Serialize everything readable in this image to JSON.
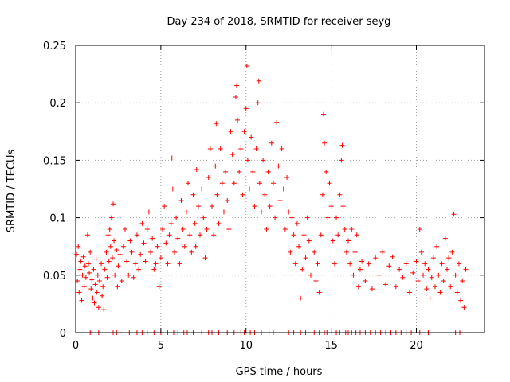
{
  "chart_data": {
    "type": "scatter",
    "title": "Day 234 of 2018, SRMTID for receiver seyg",
    "xlabel": "GPS time / hours",
    "ylabel": "SRMTID / TECUs",
    "xlim": [
      0,
      24
    ],
    "ylim": [
      0,
      0.25
    ],
    "x_ticks": [
      0,
      5,
      10,
      15,
      20
    ],
    "x_tick_labels": [
      "0",
      "5",
      "10",
      "15",
      "20"
    ],
    "y_ticks": [
      0,
      0.05,
      0.1,
      0.15,
      0.2,
      0.25
    ],
    "y_tick_labels": [
      "0",
      "0.05",
      "0.1",
      "0.15",
      "0.2",
      "0.25"
    ],
    "grid": true,
    "marker": "+",
    "series": [
      {
        "name": "SRMTID",
        "color": "#ff0000",
        "points": [
          [
            0.05,
            0.068
          ],
          [
            0.1,
            0.045
          ],
          [
            0.15,
            0.075
          ],
          [
            0.2,
            0.035
          ],
          [
            0.25,
            0.055
          ],
          [
            0.3,
            0.062
          ],
          [
            0.35,
            0.028
          ],
          [
            0.4,
            0.05
          ],
          [
            0.45,
            0.066
          ],
          [
            0.5,
            0.04
          ],
          [
            0.55,
            0.058
          ],
          [
            0.6,
            0.048
          ],
          [
            0.7,
            0.085
          ],
          [
            0.75,
            0.06
          ],
          [
            0.8,
            0.052
          ],
          [
            0.85,
            0.07
          ],
          [
            0.9,
            0.038
          ],
          [
            0.95,
            0.046
          ],
          [
            1.0,
            0.03
          ],
          [
            1.05,
            0.055
          ],
          [
            1.1,
            0.026
          ],
          [
            1.15,
            0.042
          ],
          [
            1.2,
            0.064
          ],
          [
            1.25,
            0.035
          ],
          [
            1.3,
            0.05
          ],
          [
            1.35,
            0.022
          ],
          [
            1.4,
            0.045
          ],
          [
            1.5,
            0.06
          ],
          [
            1.55,
            0.032
          ],
          [
            1.6,
            0.04
          ],
          [
            1.65,
            0.02
          ],
          [
            1.7,
            0.055
          ],
          [
            1.8,
            0.07
          ],
          [
            1.85,
            0.048
          ],
          [
            1.9,
            0.085
          ],
          [
            1.95,
            0.062
          ],
          [
            2.0,
            0.09
          ],
          [
            2.05,
            0.075
          ],
          [
            2.1,
            0.1
          ],
          [
            2.15,
            0.065
          ],
          [
            2.2,
            0.112
          ],
          [
            2.25,
            0.08
          ],
          [
            2.3,
            0.05
          ],
          [
            2.4,
            0.072
          ],
          [
            2.45,
            0.04
          ],
          [
            2.5,
            0.058
          ],
          [
            2.6,
            0.068
          ],
          [
            2.7,
            0.045
          ],
          [
            2.8,
            0.075
          ],
          [
            2.9,
            0.09
          ],
          [
            3.0,
            0.062
          ],
          [
            3.1,
            0.05
          ],
          [
            3.2,
            0.08
          ],
          [
            3.3,
            0.07
          ],
          [
            3.4,
            0.048
          ],
          [
            3.5,
            0.06
          ],
          [
            3.6,
            0.085
          ],
          [
            3.7,
            0.055
          ],
          [
            3.8,
            0.068
          ],
          [
            3.9,
            0.095
          ],
          [
            4.0,
            0.078
          ],
          [
            4.1,
            0.062
          ],
          [
            4.2,
            0.09
          ],
          [
            4.3,
            0.105
          ],
          [
            4.4,
            0.07
          ],
          [
            4.5,
            0.082
          ],
          [
            4.6,
            0.055
          ],
          [
            4.7,
            0.06
          ],
          [
            4.8,
            0.075
          ],
          [
            4.9,
            0.04
          ],
          [
            5.0,
            0.065
          ],
          [
            5.1,
            0.09
          ],
          [
            5.2,
            0.11
          ],
          [
            5.3,
            0.078
          ],
          [
            5.4,
            0.06
          ],
          [
            5.5,
            0.085
          ],
          [
            5.6,
            0.095
          ],
          [
            5.65,
            0.152
          ],
          [
            5.7,
            0.125
          ],
          [
            5.8,
            0.07
          ],
          [
            5.9,
            0.1
          ],
          [
            6.0,
            0.082
          ],
          [
            6.1,
            0.06
          ],
          [
            6.2,
            0.115
          ],
          [
            6.3,
            0.09
          ],
          [
            6.4,
            0.075
          ],
          [
            6.5,
            0.105
          ],
          [
            6.6,
            0.13
          ],
          [
            6.7,
            0.085
          ],
          [
            6.8,
            0.07
          ],
          [
            6.9,
            0.12
          ],
          [
            7.0,
            0.095
          ],
          [
            7.05,
            0.075
          ],
          [
            7.1,
            0.142
          ],
          [
            7.2,
            0.11
          ],
          [
            7.3,
            0.085
          ],
          [
            7.4,
            0.125
          ],
          [
            7.5,
            0.1
          ],
          [
            7.6,
            0.065
          ],
          [
            7.7,
            0.09
          ],
          [
            7.8,
            0.135
          ],
          [
            7.9,
            0.16
          ],
          [
            8.0,
            0.11
          ],
          [
            8.1,
            0.085
          ],
          [
            8.2,
            0.145
          ],
          [
            8.25,
            0.182
          ],
          [
            8.3,
            0.12
          ],
          [
            8.4,
            0.095
          ],
          [
            8.5,
            0.16
          ],
          [
            8.6,
            0.13
          ],
          [
            8.7,
            0.105
          ],
          [
            8.8,
            0.14
          ],
          [
            8.9,
            0.115
          ],
          [
            9.0,
            0.09
          ],
          [
            9.1,
            0.175
          ],
          [
            9.2,
            0.155
          ],
          [
            9.3,
            0.13
          ],
          [
            9.4,
            0.205
          ],
          [
            9.45,
            0.215
          ],
          [
            9.5,
            0.185
          ],
          [
            9.6,
            0.14
          ],
          [
            9.7,
            0.16
          ],
          [
            9.8,
            0.12
          ],
          [
            9.9,
            0.175
          ],
          [
            10.0,
            0.195
          ],
          [
            10.05,
            0.232
          ],
          [
            10.1,
            0.15
          ],
          [
            10.2,
            0.125
          ],
          [
            10.3,
            0.17
          ],
          [
            10.4,
            0.14
          ],
          [
            10.5,
            0.11
          ],
          [
            10.6,
            0.16
          ],
          [
            10.7,
            0.2
          ],
          [
            10.75,
            0.219
          ],
          [
            10.8,
            0.13
          ],
          [
            10.9,
            0.105
          ],
          [
            11.0,
            0.15
          ],
          [
            11.1,
            0.12
          ],
          [
            11.2,
            0.09
          ],
          [
            11.3,
            0.14
          ],
          [
            11.4,
            0.11
          ],
          [
            11.5,
            0.165
          ],
          [
            11.6,
            0.13
          ],
          [
            11.7,
            0.1
          ],
          [
            11.8,
            0.183
          ],
          [
            11.9,
            0.145
          ],
          [
            12.0,
            0.115
          ],
          [
            12.1,
            0.16
          ],
          [
            12.2,
            0.125
          ],
          [
            12.3,
            0.09
          ],
          [
            12.4,
            0.135
          ],
          [
            12.5,
            0.105
          ],
          [
            12.6,
            0.07
          ],
          [
            12.7,
            0.1
          ],
          [
            12.8,
            0.085
          ],
          [
            12.9,
            0.06
          ],
          [
            13.0,
            0.095
          ],
          [
            13.1,
            0.075
          ],
          [
            13.2,
            0.03
          ],
          [
            13.3,
            0.055
          ],
          [
            13.4,
            0.085
          ],
          [
            13.5,
            0.065
          ],
          [
            13.6,
            0.1
          ],
          [
            13.7,
            0.08
          ],
          [
            13.8,
            0.05
          ],
          [
            14.0,
            0.07
          ],
          [
            14.1,
            0.045
          ],
          [
            14.2,
            0.06
          ],
          [
            14.3,
            0.035
          ],
          [
            14.4,
            0.085
          ],
          [
            14.5,
            0.12
          ],
          [
            14.55,
            0.19
          ],
          [
            14.6,
            0.165
          ],
          [
            14.7,
            0.14
          ],
          [
            14.8,
            0.1
          ],
          [
            14.9,
            0.13
          ],
          [
            15.0,
            0.11
          ],
          [
            15.1,
            0.08
          ],
          [
            15.2,
            0.06
          ],
          [
            15.3,
            0.1
          ],
          [
            15.4,
            0.085
          ],
          [
            15.5,
            0.12
          ],
          [
            15.6,
            0.15
          ],
          [
            15.65,
            0.163
          ],
          [
            15.7,
            0.11
          ],
          [
            15.8,
            0.09
          ],
          [
            15.9,
            0.07
          ],
          [
            16.0,
            0.08
          ],
          [
            16.1,
            0.06
          ],
          [
            16.2,
            0.09
          ],
          [
            16.3,
            0.05
          ],
          [
            16.4,
            0.07
          ],
          [
            16.5,
            0.085
          ],
          [
            16.6,
            0.04
          ],
          [
            16.7,
            0.055
          ],
          [
            16.8,
            0.062
          ],
          [
            17.0,
            0.045
          ],
          [
            17.2,
            0.06
          ],
          [
            17.4,
            0.038
          ],
          [
            17.6,
            0.065
          ],
          [
            17.8,
            0.05
          ],
          [
            18.0,
            0.07
          ],
          [
            18.2,
            0.042
          ],
          [
            18.4,
            0.058
          ],
          [
            18.6,
            0.066
          ],
          [
            18.8,
            0.04
          ],
          [
            19.0,
            0.055
          ],
          [
            19.2,
            0.048
          ],
          [
            19.4,
            0.06
          ],
          [
            19.6,
            0.035
          ],
          [
            19.8,
            0.052
          ],
          [
            20.0,
            0.062
          ],
          [
            20.1,
            0.045
          ],
          [
            20.2,
            0.09
          ],
          [
            20.3,
            0.07
          ],
          [
            20.4,
            0.05
          ],
          [
            20.5,
            0.06
          ],
          [
            20.6,
            0.038
          ],
          [
            20.7,
            0.055
          ],
          [
            20.8,
            0.03
          ],
          [
            20.9,
            0.048
          ],
          [
            21.0,
            0.065
          ],
          [
            21.1,
            0.04
          ],
          [
            21.2,
            0.075
          ],
          [
            21.3,
            0.05
          ],
          [
            21.4,
            0.035
          ],
          [
            21.5,
            0.06
          ],
          [
            21.6,
            0.045
          ],
          [
            21.7,
            0.082
          ],
          [
            21.8,
            0.055
          ],
          [
            21.9,
            0.065
          ],
          [
            22.0,
            0.04
          ],
          [
            22.1,
            0.07
          ],
          [
            22.2,
            0.103
          ],
          [
            22.3,
            0.05
          ],
          [
            22.4,
            0.035
          ],
          [
            22.5,
            0.06
          ],
          [
            22.6,
            0.028
          ],
          [
            22.7,
            0.045
          ],
          [
            22.8,
            0.022
          ],
          [
            22.9,
            0.055
          ]
        ],
        "zero_points": [
          0.85,
          0.95,
          1.35,
          2.2,
          2.4,
          2.6,
          3.15,
          3.6,
          3.9,
          4.2,
          4.6,
          5.0,
          5.4,
          5.75,
          6.0,
          6.35,
          6.55,
          6.9,
          7.4,
          7.8,
          8.0,
          8.4,
          8.9,
          9.3,
          9.7,
          9.9,
          10.25,
          10.5,
          10.9,
          11.35,
          11.6,
          12.5,
          12.8,
          13.2,
          13.5,
          14.0,
          14.3,
          14.6,
          14.75,
          15.0,
          15.3,
          15.5,
          15.85,
          16.0,
          16.2,
          16.45,
          16.7,
          17.0,
          17.3,
          17.6,
          17.9,
          18.2,
          18.5,
          18.8,
          19.1,
          19.4,
          19.7,
          20.2,
          20.7,
          22.3,
          22.55
        ]
      }
    ]
  }
}
